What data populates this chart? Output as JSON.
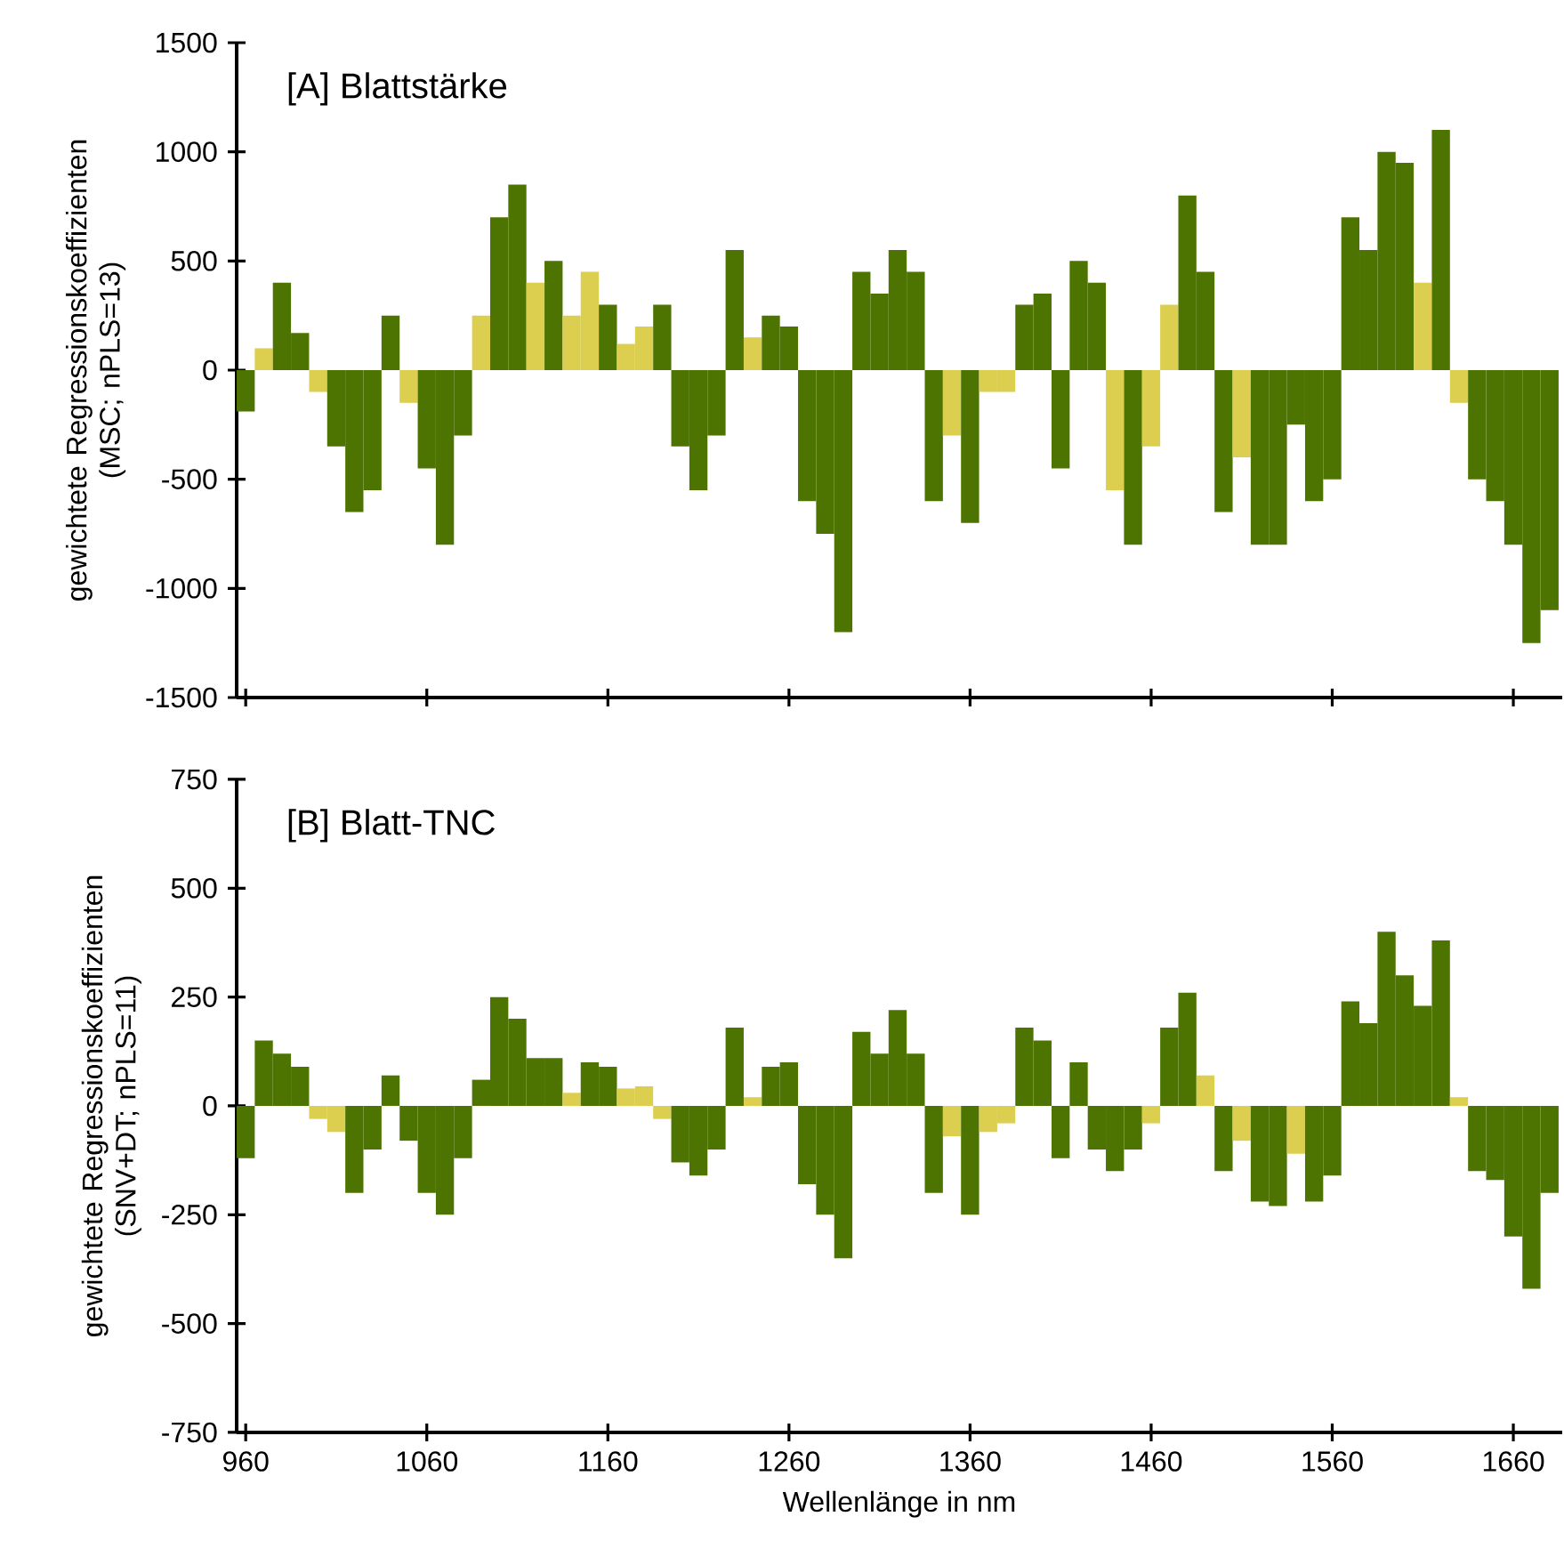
{
  "chart_data": [
    {
      "type": "bar",
      "title": "[A] Blattstärke",
      "ylabel": "gewichtete Regressionskoeffizienten (MSC; nPLS=13)",
      "tick_labels": "y",
      "x": [
        960,
        970,
        980,
        990,
        1000,
        1010,
        1020,
        1030,
        1040,
        1050,
        1060,
        1070,
        1080,
        1090,
        1100,
        1110,
        1120,
        1130,
        1140,
        1150,
        1160,
        1170,
        1180,
        1190,
        1200,
        1210,
        1220,
        1230,
        1240,
        1250,
        1260,
        1270,
        1280,
        1290,
        1300,
        1310,
        1320,
        1330,
        1340,
        1350,
        1360,
        1370,
        1380,
        1390,
        1400,
        1410,
        1420,
        1430,
        1440,
        1450,
        1460,
        1470,
        1480,
        1490,
        1500,
        1510,
        1520,
        1530,
        1540,
        1550,
        1560,
        1570,
        1580,
        1590,
        1600,
        1610,
        1620,
        1630,
        1640,
        1650,
        1660,
        1670,
        1680
      ],
      "values": [
        -190,
        100,
        400,
        170,
        -100,
        -350,
        -650,
        -550,
        250,
        -150,
        -450,
        -800,
        -300,
        250,
        700,
        850,
        400,
        500,
        250,
        450,
        300,
        120,
        200,
        300,
        -350,
        -550,
        -300,
        550,
        150,
        250,
        200,
        -600,
        -750,
        -1200,
        450,
        350,
        550,
        450,
        -600,
        -300,
        -700,
        -100,
        -100,
        300,
        350,
        -450,
        500,
        400,
        -550,
        -800,
        -350,
        300,
        800,
        450,
        -650,
        -400,
        -800,
        -800,
        -250,
        -600,
        -500,
        700,
        550,
        1000,
        950,
        400,
        1100,
        -150,
        -500,
        -600,
        -800,
        -1250,
        -1100
      ],
      "colors": [
        "#4d7400",
        "#dccf4f",
        "#4d7400",
        "#4d7400",
        "#dccf4f",
        "#4d7400",
        "#4d7400",
        "#4d7400",
        "#4d7400",
        "#dccf4f",
        "#4d7400",
        "#4d7400",
        "#4d7400",
        "#dccf4f",
        "#4d7400",
        "#4d7400",
        "#dccf4f",
        "#4d7400",
        "#dccf4f",
        "#dccf4f",
        "#4d7400",
        "#dccf4f",
        "#dccf4f",
        "#4d7400",
        "#4d7400",
        "#4d7400",
        "#4d7400",
        "#4d7400",
        "#dccf4f",
        "#4d7400",
        "#4d7400",
        "#4d7400",
        "#4d7400",
        "#4d7400",
        "#4d7400",
        "#4d7400",
        "#4d7400",
        "#4d7400",
        "#4d7400",
        "#dccf4f",
        "#4d7400",
        "#dccf4f",
        "#dccf4f",
        "#4d7400",
        "#4d7400",
        "#4d7400",
        "#4d7400",
        "#4d7400",
        "#dccf4f",
        "#4d7400",
        "#dccf4f",
        "#dccf4f",
        "#4d7400",
        "#4d7400",
        "#4d7400",
        "#dccf4f",
        "#4d7400",
        "#4d7400",
        "#4d7400",
        "#4d7400",
        "#4d7400",
        "#4d7400",
        "#4d7400",
        "#4d7400",
        "#4d7400",
        "#dccf4f",
        "#4d7400",
        "#dccf4f",
        "#4d7400",
        "#4d7400",
        "#4d7400",
        "#4d7400",
        "#4d7400"
      ],
      "xlim": [
        955,
        1687
      ],
      "xticks": [
        960,
        1060,
        1160,
        1260,
        1360,
        1460,
        1560,
        1660
      ],
      "ylim": [
        -1500,
        1500
      ],
      "yticks": [
        -1500,
        -1000,
        -500,
        0,
        500,
        1000,
        1500
      ]
    },
    {
      "type": "bar",
      "title": "[B] Blatt-TNC",
      "ylabel": "gewichtete Regressionskoeffizienten (SNV+DT; nPLS=11)",
      "xlabel": "Wellenlänge in nm",
      "x": [
        960,
        970,
        980,
        990,
        1000,
        1010,
        1020,
        1030,
        1040,
        1050,
        1060,
        1070,
        1080,
        1090,
        1100,
        1110,
        1120,
        1130,
        1140,
        1150,
        1160,
        1170,
        1180,
        1190,
        1200,
        1210,
        1220,
        1230,
        1240,
        1250,
        1260,
        1270,
        1280,
        1290,
        1300,
        1310,
        1320,
        1330,
        1340,
        1350,
        1360,
        1370,
        1380,
        1390,
        1400,
        1410,
        1420,
        1430,
        1440,
        1450,
        1460,
        1470,
        1480,
        1490,
        1500,
        1510,
        1520,
        1530,
        1540,
        1550,
        1560,
        1570,
        1580,
        1590,
        1600,
        1610,
        1620,
        1630,
        1640,
        1650,
        1660,
        1670,
        1680
      ],
      "values": [
        -120,
        150,
        120,
        90,
        -30,
        -60,
        -200,
        -100,
        70,
        -80,
        -200,
        -250,
        -120,
        60,
        250,
        200,
        110,
        110,
        30,
        100,
        90,
        40,
        45,
        -30,
        -130,
        -160,
        -100,
        180,
        20,
        90,
        100,
        -180,
        -250,
        -350,
        170,
        120,
        220,
        120,
        -200,
        -70,
        -250,
        -60,
        -40,
        180,
        150,
        -120,
        100,
        -100,
        -150,
        -100,
        -40,
        180,
        260,
        70,
        -150,
        -80,
        -220,
        -230,
        -110,
        -220,
        -160,
        240,
        190,
        400,
        300,
        230,
        380,
        20,
        -150,
        -170,
        -300,
        -420,
        -200
      ],
      "colors": [
        "#4d7400",
        "#4d7400",
        "#4d7400",
        "#4d7400",
        "#dccf4f",
        "#dccf4f",
        "#4d7400",
        "#4d7400",
        "#4d7400",
        "#4d7400",
        "#4d7400",
        "#4d7400",
        "#4d7400",
        "#4d7400",
        "#4d7400",
        "#4d7400",
        "#4d7400",
        "#4d7400",
        "#dccf4f",
        "#4d7400",
        "#4d7400",
        "#dccf4f",
        "#dccf4f",
        "#dccf4f",
        "#4d7400",
        "#4d7400",
        "#4d7400",
        "#4d7400",
        "#dccf4f",
        "#4d7400",
        "#4d7400",
        "#4d7400",
        "#4d7400",
        "#4d7400",
        "#4d7400",
        "#4d7400",
        "#4d7400",
        "#4d7400",
        "#4d7400",
        "#dccf4f",
        "#4d7400",
        "#dccf4f",
        "#dccf4f",
        "#4d7400",
        "#4d7400",
        "#4d7400",
        "#4d7400",
        "#4d7400",
        "#4d7400",
        "#4d7400",
        "#dccf4f",
        "#4d7400",
        "#4d7400",
        "#dccf4f",
        "#4d7400",
        "#dccf4f",
        "#4d7400",
        "#4d7400",
        "#dccf4f",
        "#4d7400",
        "#4d7400",
        "#4d7400",
        "#4d7400",
        "#4d7400",
        "#4d7400",
        "#4d7400",
        "#4d7400",
        "#dccf4f",
        "#4d7400",
        "#4d7400",
        "#4d7400",
        "#4d7400",
        "#4d7400"
      ],
      "xlim": [
        955,
        1687
      ],
      "xticks": [
        960,
        1060,
        1160,
        1260,
        1360,
        1460,
        1560,
        1660
      ],
      "ylim": [
        -750,
        750
      ],
      "yticks": [
        -750,
        -500,
        -250,
        0,
        250,
        500,
        750
      ]
    }
  ]
}
